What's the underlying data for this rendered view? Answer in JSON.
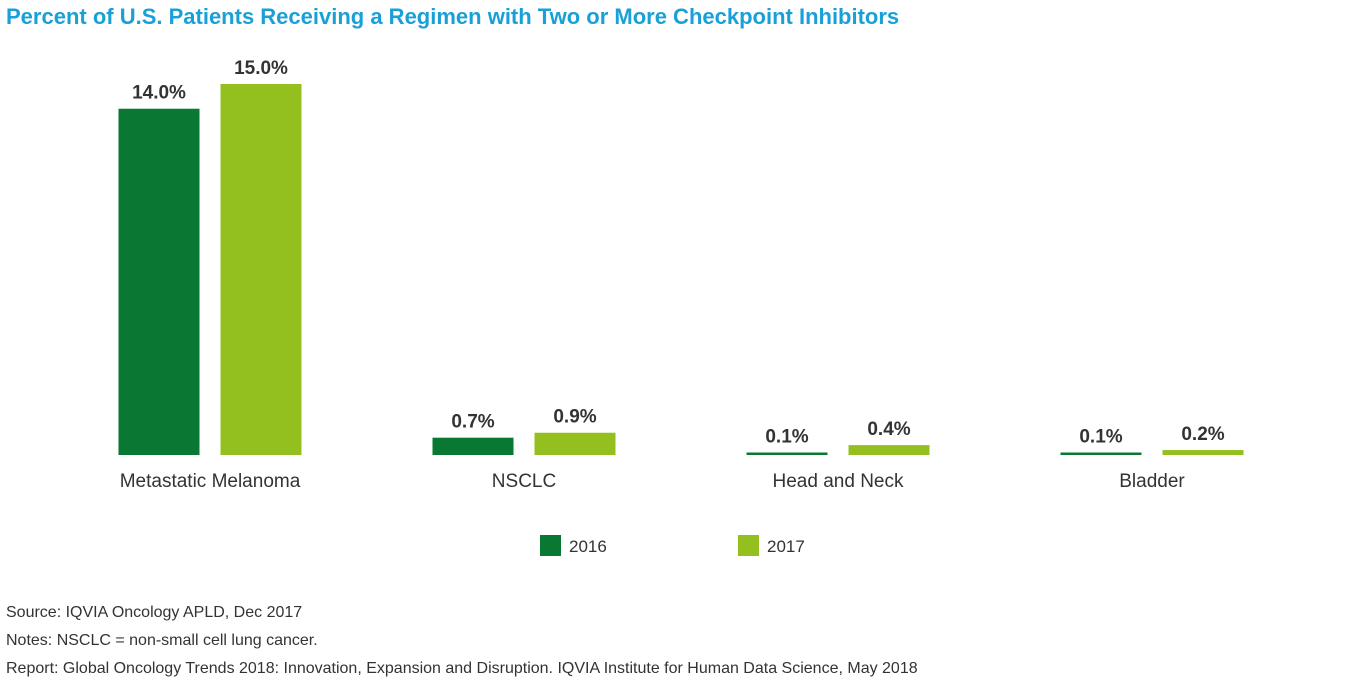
{
  "title": "Percent of U.S. Patients Receiving a Regimen with Two or More Checkpoint Inhibitors",
  "chart_data": {
    "type": "bar",
    "categories": [
      "Metastatic Melanoma",
      "NSCLC",
      "Head and Neck",
      "Bladder"
    ],
    "series": [
      {
        "name": "2016",
        "values": [
          14.0,
          0.7,
          0.1,
          0.1
        ],
        "labels": [
          "14.0%",
          "0.7%",
          "0.1%",
          "0.1%"
        ],
        "color": "#097833"
      },
      {
        "name": "2017",
        "values": [
          15.0,
          0.9,
          0.4,
          0.2
        ],
        "labels": [
          "15.0%",
          "0.9%",
          "0.4%",
          "0.2%"
        ],
        "color": "#93c01f"
      }
    ],
    "ylim": [
      0,
      15
    ],
    "grid": false,
    "legend": "bottom-center"
  },
  "footnotes": {
    "source": "Source: IQVIA Oncology APLD, Dec 2017",
    "notes": "Notes: NSCLC = non-small cell lung cancer.",
    "report": "Report: Global Oncology Trends 2018: Innovation, Expansion and Disruption. IQVIA Institute for Human Data Science, May 2018"
  }
}
